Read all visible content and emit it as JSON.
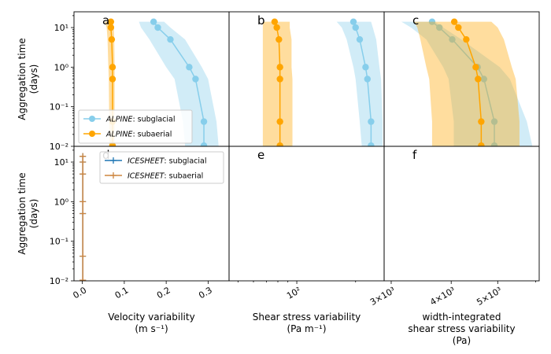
{
  "chart_data": {
    "type": "line",
    "y_axis": {
      "label": "Aggregation time\n(days)",
      "scale": "log",
      "ylim": [
        0.01,
        25
      ],
      "ticks": [
        0.01,
        0.1,
        1,
        10
      ],
      "tick_labels": [
        "10⁻²",
        "10⁻¹",
        "10⁰",
        "10¹"
      ]
    },
    "x_axes": [
      {
        "column": 0,
        "label": "Velocity variability\n(m s⁻¹)",
        "scale": "linear",
        "xlim": [
          -0.02,
          0.35
        ],
        "ticks": [
          0.0,
          0.1,
          0.2,
          0.3
        ],
        "tick_labels": [
          "0.0",
          "0.1",
          "0.2",
          "0.3"
        ]
      },
      {
        "column": 1,
        "label": "Shear stress variability\n(Pa m⁻¹)",
        "scale": "log",
        "xlim": [
          45,
          280
        ],
        "ticks": [
          100
        ],
        "tick_labels": [
          "10²"
        ]
      },
      {
        "column": 2,
        "label": "width-integrated\nshear stress variability\n(Pa)",
        "scale": "log",
        "xlim": [
          2900,
          6100
        ],
        "ticks": [
          3000,
          4000,
          5000
        ],
        "tick_labels": [
          "3×10³",
          "4×10³",
          "5×10³"
        ]
      }
    ],
    "aggregation_days": [
      14,
      10,
      5,
      1,
      0.5,
      0.042,
      0.0104
    ],
    "panels": [
      {
        "id": "a",
        "row": 0,
        "column": 0,
        "series": [
          {
            "name": "subglacial",
            "model": "ALPINE",
            "color": "#87ceeb",
            "marker": "circle",
            "values": [
              0.17,
              0.18,
              0.21,
              0.255,
              0.27,
              0.29,
              0.29
            ],
            "band_low": [
              0.135,
              0.14,
              0.16,
              0.2,
              0.22,
              0.24,
              0.245
            ],
            "band_high": [
              0.195,
              0.21,
              0.245,
              0.285,
              0.3,
              0.32,
              0.325
            ]
          },
          {
            "name": "subaerial",
            "model": "ALPINE",
            "color": "#ffa500",
            "marker": "circle",
            "values": [
              0.068,
              0.068,
              0.07,
              0.072,
              0.072,
              0.072,
              0.072
            ],
            "band_low": [
              0.053,
              0.058,
              0.06,
              0.062,
              0.063,
              0.064,
              0.064
            ],
            "band_high": [
              0.073,
              0.075,
              0.076,
              0.077,
              0.077,
              0.077,
              0.077
            ]
          }
        ],
        "legend": {
          "position": "lower-left",
          "entries": [
            {
              "model": "ALPINE",
              "label": ": subglacial",
              "color": "#87ceeb",
              "marker": "circle"
            },
            {
              "model": "ALPINE",
              "label": ": subaerial",
              "color": "#ffa500",
              "marker": "circle"
            }
          ]
        }
      },
      {
        "id": "b",
        "row": 0,
        "column": 1,
        "series": [
          {
            "name": "subglacial",
            "model": "ALPINE",
            "color": "#87ceeb",
            "marker": "circle",
            "values": [
              195,
              200,
              210,
              225,
              230,
              240,
              240
            ],
            "band_low": [
              160,
              170,
              180,
              195,
              200,
              210,
              215
            ],
            "band_high": [
              240,
              245,
              255,
              265,
              270,
              275,
              275
            ]
          },
          {
            "name": "subaerial",
            "model": "ALPINE",
            "color": "#ffa500",
            "marker": "circle",
            "values": [
              77,
              79,
              81,
              82,
              82,
              82,
              82
            ],
            "band_low": [
              67,
              67,
              67,
              67,
              67,
              67,
              67
            ],
            "band_high": [
              92,
              92,
              94,
              94,
              95,
              95,
              95
            ]
          }
        ]
      },
      {
        "id": "c",
        "row": 0,
        "column": 2,
        "series": [
          {
            "name": "subglacial",
            "model": "ALPINE",
            "color": "#87ceeb",
            "marker": "circle",
            "values": [
              3650,
              3780,
              4020,
              4540,
              4680,
              4920,
              4920
            ],
            "band_low": [
              3150,
              3300,
              3550,
              3850,
              3950,
              4050,
              4050
            ],
            "band_high": [
              3700,
              3850,
              4200,
              5050,
              5300,
              5750,
              5900
            ]
          },
          {
            "name": "subaerial",
            "model": "ALPINE",
            "color": "#ffa500",
            "marker": "circle",
            "values": [
              4060,
              4140,
              4300,
              4500,
              4550,
              4620,
              4620
            ],
            "band_low": [
              3350,
              3400,
              3450,
              3550,
              3600,
              3650,
              3650
            ],
            "band_high": [
              4850,
              5000,
              5150,
              5350,
              5450,
              5550,
              5550
            ]
          }
        ]
      },
      {
        "id": "d",
        "row": 1,
        "column": 0,
        "series": [
          {
            "name": "subglacial",
            "model": "ICESHEET",
            "color": "#1f77b4",
            "marker": "plus",
            "values": [
              0.001,
              0.001,
              0.001,
              0.001,
              0.001,
              0.001,
              0.001
            ]
          },
          {
            "name": "subaerial",
            "model": "ICESHEET",
            "color": "#cd853f",
            "marker": "plus",
            "values": [
              0.001,
              0.001,
              0.001,
              0.001,
              0.001,
              0.001,
              0.001
            ]
          }
        ],
        "legend": {
          "position": "upper-right",
          "entries": [
            {
              "model": "ICESHEET",
              "label": ": subglacial",
              "color": "#1f77b4",
              "marker": "plus"
            },
            {
              "model": "ICESHEET",
              "label": ": subaerial",
              "color": "#cd853f",
              "marker": "plus"
            }
          ]
        }
      },
      {
        "id": "e",
        "row": 1,
        "column": 1,
        "series": []
      },
      {
        "id": "f",
        "row": 1,
        "column": 2,
        "series": []
      }
    ]
  }
}
